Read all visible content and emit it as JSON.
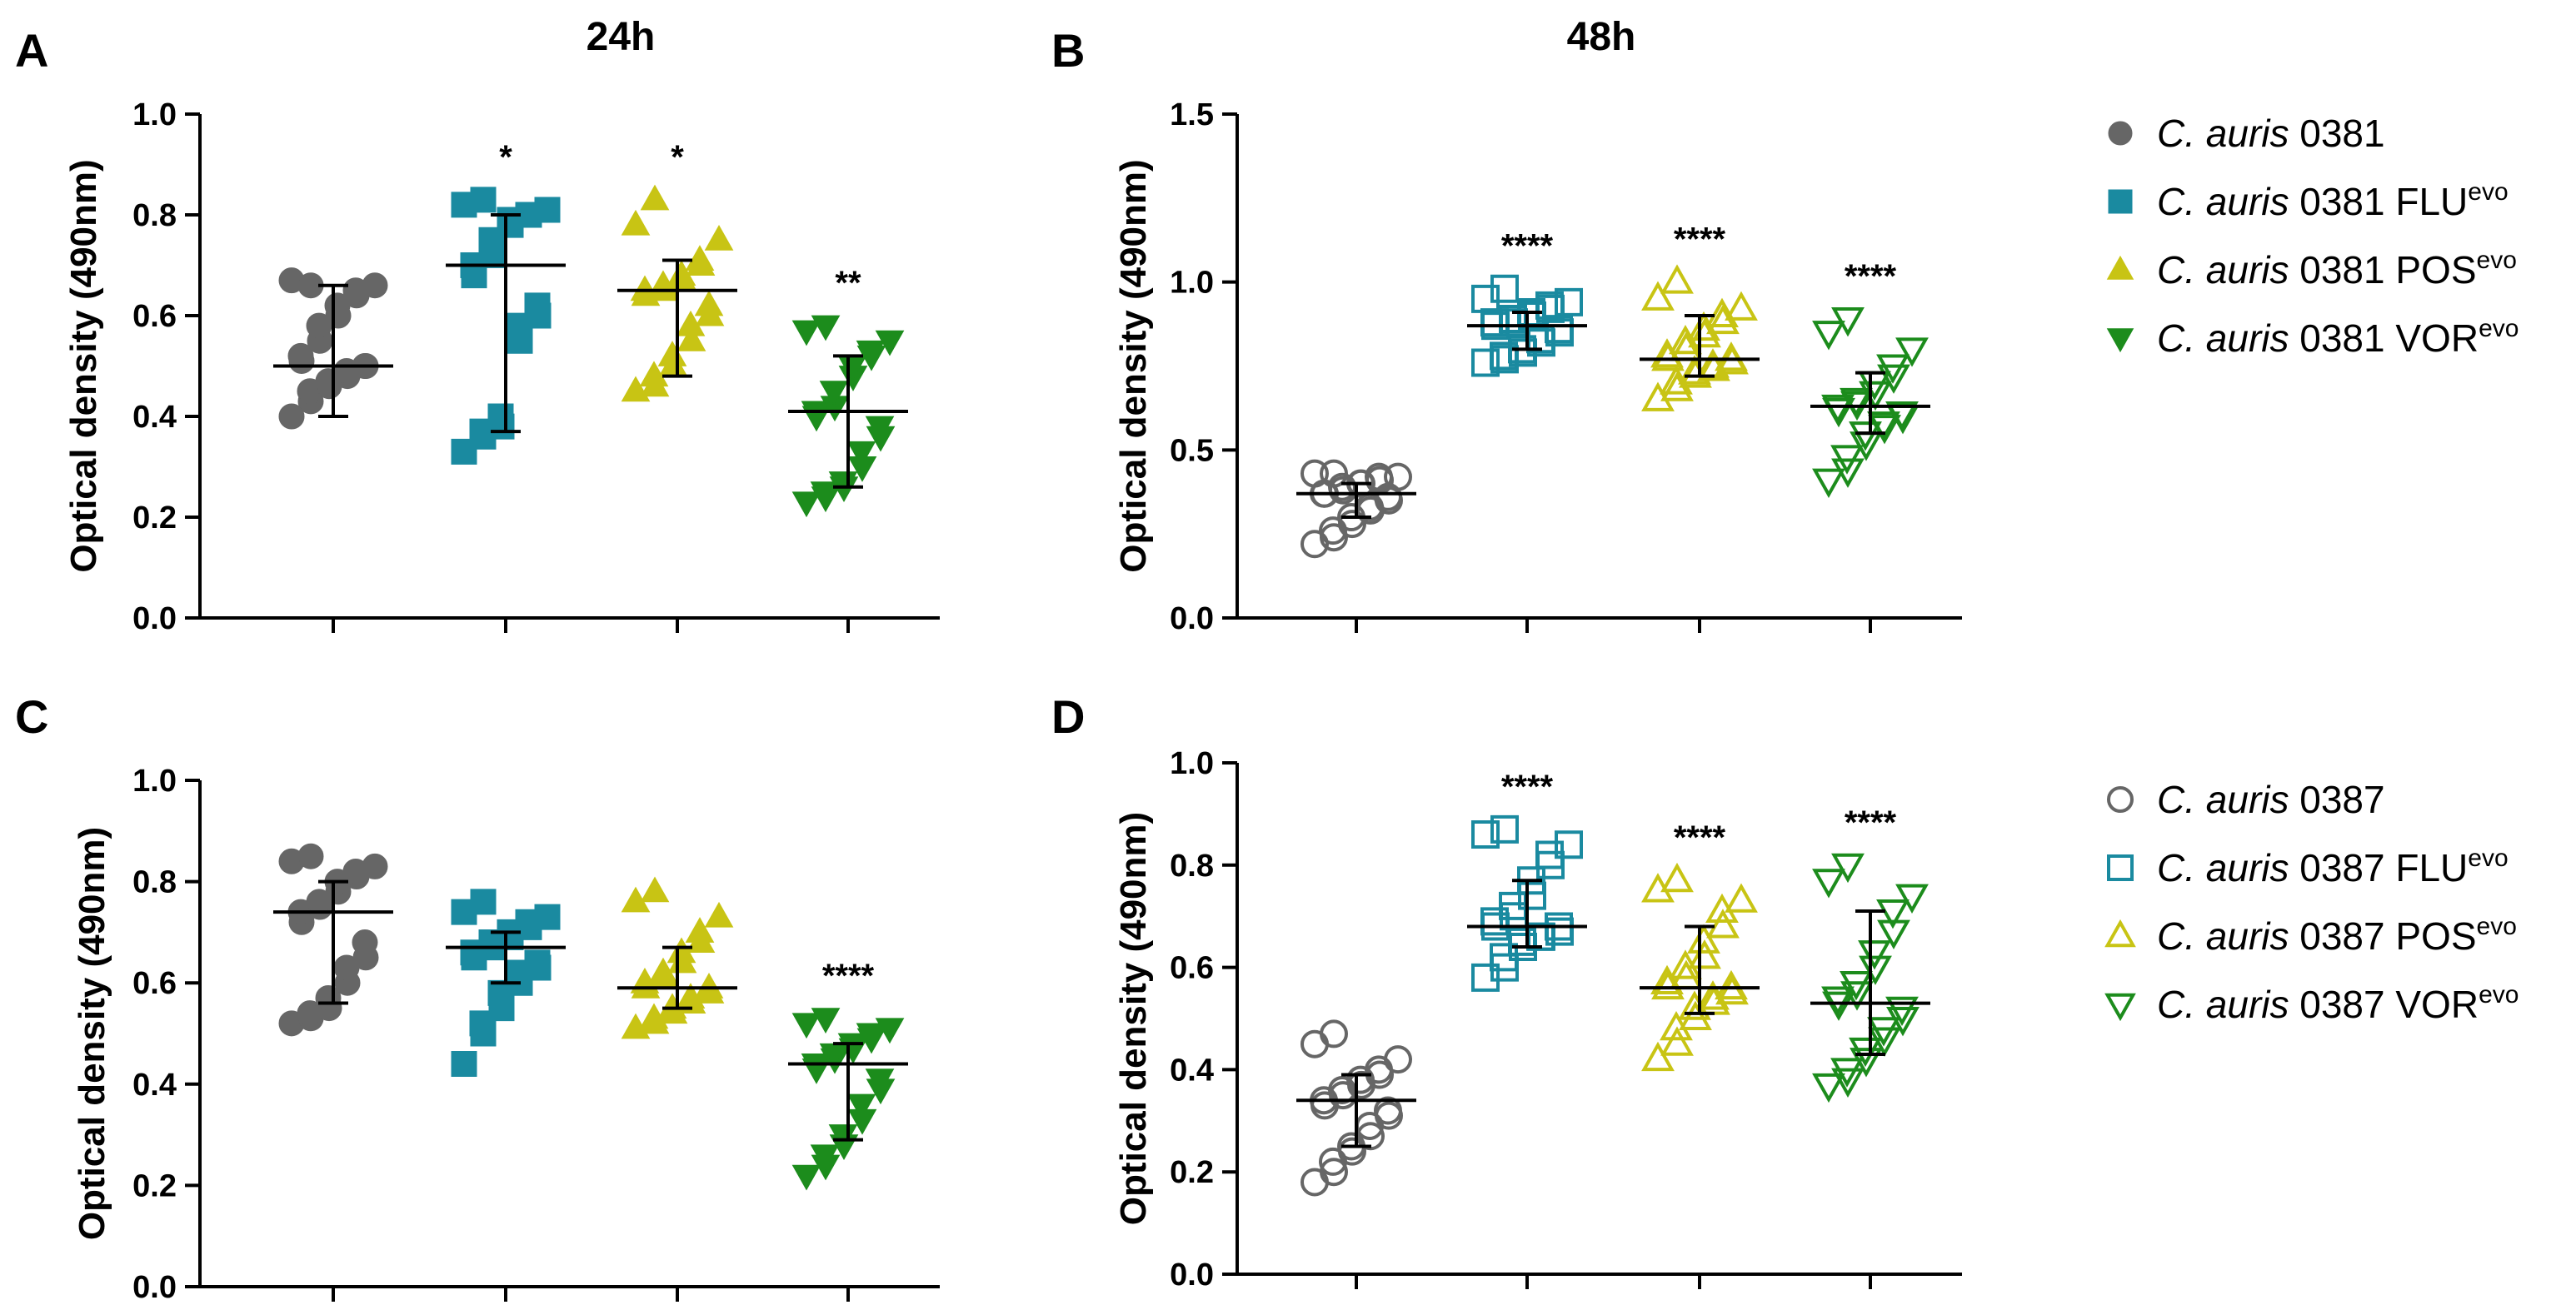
{
  "figure": {
    "column_titles": [
      "24h",
      "48h"
    ]
  },
  "colors": {
    "grey": "#666666",
    "teal": "#1a8aa0",
    "yellow": "#c8c414",
    "green": "#1c8c1c",
    "axis": "#000000"
  },
  "legends": [
    {
      "filled": true,
      "items": [
        {
          "italic": "C. auris",
          "text": " 0381",
          "sup": "",
          "color": "grey",
          "marker": "circle"
        },
        {
          "italic": "C. auris",
          "text": " 0381 FLU",
          "sup": "evo",
          "color": "teal",
          "marker": "square"
        },
        {
          "italic": "C. auris",
          "text": " 0381 POS",
          "sup": "evo",
          "color": "yellow",
          "marker": "triangle-up"
        },
        {
          "italic": "C. auris",
          "text": " 0381 VOR",
          "sup": "evo",
          "color": "green",
          "marker": "triangle-down"
        }
      ]
    },
    {
      "filled": false,
      "items": [
        {
          "italic": "C. auris",
          "text": " 0387",
          "sup": "",
          "color": "grey",
          "marker": "circle"
        },
        {
          "italic": "C. auris",
          "text": " 0387 FLU",
          "sup": "evo",
          "color": "teal",
          "marker": "square"
        },
        {
          "italic": "C. auris",
          "text": " 0387 POS",
          "sup": "evo",
          "color": "yellow",
          "marker": "triangle-up"
        },
        {
          "italic": "C. auris",
          "text": " 0387 VOR",
          "sup": "evo",
          "color": "green",
          "marker": "triangle-down"
        }
      ]
    }
  ],
  "chart_data": [
    {
      "panel": "A",
      "type": "scatter",
      "title": "24h",
      "ylabel": "Optical density (490nm)",
      "ylim": [
        0,
        1.0
      ],
      "yticks": [
        0.0,
        0.2,
        0.4,
        0.6,
        0.8,
        1.0
      ],
      "ytick_labels": [
        "0.0",
        "0.2",
        "0.4",
        "0.6",
        "0.8",
        "1.0"
      ],
      "filled": true,
      "series": [
        {
          "name": "C. auris 0381",
          "color": "grey",
          "marker": "circle",
          "median": 0.5,
          "range": [
            0.4,
            0.66
          ],
          "significance": "",
          "values": [
            0.4,
            0.43,
            0.45,
            0.46,
            0.47,
            0.48,
            0.49,
            0.5,
            0.5,
            0.51,
            0.52,
            0.55,
            0.58,
            0.6,
            0.62,
            0.64,
            0.65,
            0.66,
            0.67,
            0.66
          ]
        },
        {
          "name": "C. auris 0381 FLU evo",
          "color": "teal",
          "marker": "square",
          "median": 0.7,
          "range": [
            0.37,
            0.8
          ],
          "significance": "*",
          "values": [
            0.33,
            0.36,
            0.37,
            0.38,
            0.4,
            0.55,
            0.58,
            0.6,
            0.62,
            0.68,
            0.7,
            0.72,
            0.75,
            0.78,
            0.79,
            0.8,
            0.8,
            0.81,
            0.82,
            0.83
          ]
        },
        {
          "name": "C. auris 0381 POS evo",
          "color": "yellow",
          "marker": "triangle-up",
          "median": 0.65,
          "range": [
            0.48,
            0.71
          ],
          "significance": "*",
          "values": [
            0.45,
            0.46,
            0.48,
            0.5,
            0.52,
            0.55,
            0.58,
            0.6,
            0.62,
            0.64,
            0.65,
            0.65,
            0.66,
            0.67,
            0.68,
            0.7,
            0.71,
            0.75,
            0.78,
            0.83
          ]
        },
        {
          "name": "C. auris 0381 VOR evo",
          "color": "green",
          "marker": "triangle-down",
          "median": 0.41,
          "range": [
            0.26,
            0.52
          ],
          "significance": "**",
          "values": [
            0.23,
            0.24,
            0.25,
            0.26,
            0.27,
            0.3,
            0.33,
            0.36,
            0.38,
            0.4,
            0.41,
            0.42,
            0.45,
            0.48,
            0.5,
            0.52,
            0.53,
            0.55,
            0.57,
            0.58
          ]
        }
      ]
    },
    {
      "panel": "B",
      "type": "scatter",
      "title": "48h",
      "ylabel": "Optical density (490nm)",
      "ylim": [
        0,
        1.5
      ],
      "yticks": [
        0.0,
        0.5,
        1.0,
        1.5
      ],
      "ytick_labels": [
        "0.0",
        "0.5",
        "1.0",
        "1.5"
      ],
      "filled": false,
      "series": [
        {
          "name": "C. auris 0381",
          "color": "grey",
          "marker": "circle",
          "median": 0.37,
          "range": [
            0.3,
            0.4
          ],
          "significance": "",
          "values": [
            0.22,
            0.24,
            0.26,
            0.28,
            0.3,
            0.32,
            0.33,
            0.35,
            0.36,
            0.37,
            0.37,
            0.38,
            0.39,
            0.4,
            0.4,
            0.41,
            0.42,
            0.42,
            0.43,
            0.43
          ]
        },
        {
          "name": "C. auris 0381 FLU evo",
          "color": "teal",
          "marker": "square",
          "median": 0.87,
          "range": [
            0.8,
            0.91
          ],
          "significance": "****",
          "values": [
            0.76,
            0.77,
            0.78,
            0.79,
            0.8,
            0.82,
            0.83,
            0.85,
            0.86,
            0.87,
            0.88,
            0.88,
            0.89,
            0.9,
            0.91,
            0.92,
            0.93,
            0.94,
            0.95,
            0.98
          ]
        },
        {
          "name": "C. auris 0381 POS evo",
          "color": "yellow",
          "marker": "triangle-up",
          "median": 0.77,
          "range": [
            0.72,
            0.9
          ],
          "significance": "****",
          "values": [
            0.65,
            0.68,
            0.7,
            0.72,
            0.73,
            0.74,
            0.75,
            0.76,
            0.77,
            0.77,
            0.78,
            0.8,
            0.82,
            0.84,
            0.86,
            0.88,
            0.9,
            0.92,
            0.95,
            1.0
          ]
        },
        {
          "name": "C. auris 0381 VOR evo",
          "color": "green",
          "marker": "triangle-down",
          "median": 0.63,
          "range": [
            0.55,
            0.73
          ],
          "significance": "****",
          "values": [
            0.41,
            0.44,
            0.48,
            0.52,
            0.55,
            0.57,
            0.58,
            0.6,
            0.61,
            0.62,
            0.63,
            0.64,
            0.65,
            0.67,
            0.7,
            0.72,
            0.75,
            0.8,
            0.85,
            0.89
          ]
        }
      ]
    },
    {
      "panel": "C",
      "type": "scatter",
      "title": "",
      "ylabel": "Optical density (490nm)",
      "ylim": [
        0,
        1.0
      ],
      "yticks": [
        0.0,
        0.2,
        0.4,
        0.6,
        0.8,
        1.0
      ],
      "ytick_labels": [
        "0.0",
        "0.2",
        "0.4",
        "0.6",
        "0.8",
        "1.0"
      ],
      "filled": true,
      "series": [
        {
          "name": "C. auris 0387",
          "color": "grey",
          "marker": "circle",
          "median": 0.74,
          "range": [
            0.56,
            0.8
          ],
          "significance": "",
          "values": [
            0.52,
            0.53,
            0.54,
            0.55,
            0.57,
            0.6,
            0.63,
            0.65,
            0.68,
            0.72,
            0.74,
            0.75,
            0.76,
            0.78,
            0.8,
            0.81,
            0.82,
            0.83,
            0.84,
            0.85
          ]
        },
        {
          "name": "C. auris 0387 FLU evo",
          "color": "teal",
          "marker": "square",
          "median": 0.67,
          "range": [
            0.6,
            0.7
          ],
          "significance": "",
          "values": [
            0.44,
            0.5,
            0.52,
            0.55,
            0.58,
            0.6,
            0.62,
            0.63,
            0.64,
            0.65,
            0.66,
            0.67,
            0.68,
            0.69,
            0.7,
            0.71,
            0.72,
            0.73,
            0.74,
            0.76
          ]
        },
        {
          "name": "C. auris 0387 POS evo",
          "color": "yellow",
          "marker": "triangle-up",
          "median": 0.59,
          "range": [
            0.55,
            0.67
          ],
          "significance": "",
          "values": [
            0.51,
            0.52,
            0.53,
            0.54,
            0.55,
            0.56,
            0.57,
            0.58,
            0.59,
            0.59,
            0.6,
            0.61,
            0.62,
            0.64,
            0.66,
            0.68,
            0.7,
            0.73,
            0.76,
            0.78
          ]
        },
        {
          "name": "C. auris 0387 VOR evo",
          "color": "green",
          "marker": "triangle-down",
          "median": 0.44,
          "range": [
            0.29,
            0.48
          ],
          "significance": "****",
          "values": [
            0.22,
            0.24,
            0.26,
            0.28,
            0.3,
            0.33,
            0.36,
            0.39,
            0.41,
            0.43,
            0.44,
            0.45,
            0.46,
            0.47,
            0.48,
            0.49,
            0.5,
            0.51,
            0.52,
            0.53
          ]
        }
      ]
    },
    {
      "panel": "D",
      "type": "scatter",
      "title": "",
      "ylabel": "Optical density (490nm)",
      "ylim": [
        0,
        1.0
      ],
      "yticks": [
        0.0,
        0.2,
        0.4,
        0.6,
        0.8,
        1.0
      ],
      "ytick_labels": [
        "0.0",
        "0.2",
        "0.4",
        "0.6",
        "0.8",
        "1.0"
      ],
      "filled": false,
      "series": [
        {
          "name": "C. auris 0387",
          "color": "grey",
          "marker": "circle",
          "median": 0.34,
          "range": [
            0.25,
            0.39
          ],
          "significance": "",
          "values": [
            0.18,
            0.2,
            0.22,
            0.24,
            0.25,
            0.27,
            0.29,
            0.31,
            0.32,
            0.33,
            0.34,
            0.35,
            0.36,
            0.37,
            0.38,
            0.39,
            0.4,
            0.42,
            0.45,
            0.47
          ]
        },
        {
          "name": "C. auris 0387 FLU evo",
          "color": "teal",
          "marker": "square",
          "median": 0.68,
          "range": [
            0.64,
            0.77
          ],
          "significance": "****",
          "values": [
            0.58,
            0.6,
            0.62,
            0.64,
            0.65,
            0.66,
            0.66,
            0.67,
            0.68,
            0.68,
            0.69,
            0.7,
            0.72,
            0.74,
            0.77,
            0.8,
            0.82,
            0.84,
            0.86,
            0.87
          ]
        },
        {
          "name": "C. auris 0387 POS evo",
          "color": "yellow",
          "marker": "triangle-up",
          "median": 0.56,
          "range": [
            0.51,
            0.68
          ],
          "significance": "****",
          "values": [
            0.42,
            0.45,
            0.48,
            0.5,
            0.52,
            0.53,
            0.54,
            0.55,
            0.56,
            0.56,
            0.57,
            0.58,
            0.6,
            0.62,
            0.65,
            0.68,
            0.71,
            0.73,
            0.75,
            0.77
          ]
        },
        {
          "name": "C. auris 0387 VOR evo",
          "color": "green",
          "marker": "triangle-down",
          "median": 0.53,
          "range": [
            0.43,
            0.71
          ],
          "significance": "****",
          "values": [
            0.37,
            0.38,
            0.4,
            0.42,
            0.44,
            0.46,
            0.48,
            0.5,
            0.52,
            0.53,
            0.54,
            0.55,
            0.57,
            0.6,
            0.63,
            0.67,
            0.71,
            0.74,
            0.77,
            0.8
          ]
        }
      ]
    }
  ]
}
